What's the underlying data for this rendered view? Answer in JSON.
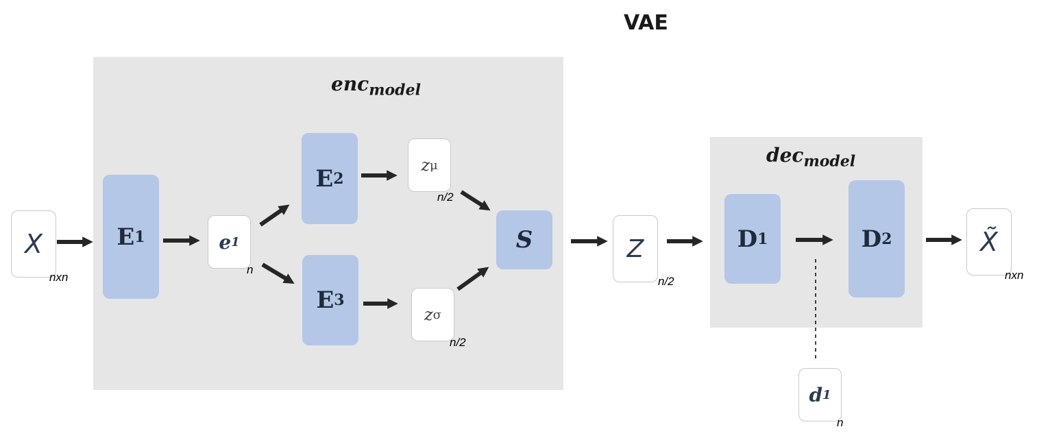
{
  "title": "VAE",
  "encoder": {
    "label_base": "enc",
    "label_sub": "model",
    "blocks": {
      "e1": {
        "base": "E",
        "sub": "1"
      },
      "e2": {
        "base": "E",
        "sub": "2"
      },
      "e3": {
        "base": "E",
        "sub": "3"
      },
      "s": {
        "base": "S"
      }
    },
    "vars": {
      "e1": {
        "base": "e",
        "sub": "1",
        "dim": "n"
      },
      "zmu": {
        "base": "z",
        "sub": "μ",
        "dim": "n/2"
      },
      "zsigma": {
        "base": "z",
        "sub": "σ",
        "dim": "n/2"
      }
    }
  },
  "decoder": {
    "label_base": "dec",
    "label_sub": "model",
    "blocks": {
      "d1": {
        "base": "D",
        "sub": "1"
      },
      "d2": {
        "base": "D",
        "sub": "2"
      }
    }
  },
  "inputs": {
    "x": {
      "label": "X",
      "dim": "nxn"
    },
    "z": {
      "label": "Z",
      "dim": "n/2"
    },
    "xhat": {
      "label": "X̃",
      "dim": "nxn"
    },
    "d1": {
      "base": "d",
      "sub": "1",
      "dim": "n"
    }
  },
  "colors": {
    "panel": "#e6e6e6",
    "block": "#b4c7e7",
    "arrow": "#262626"
  }
}
